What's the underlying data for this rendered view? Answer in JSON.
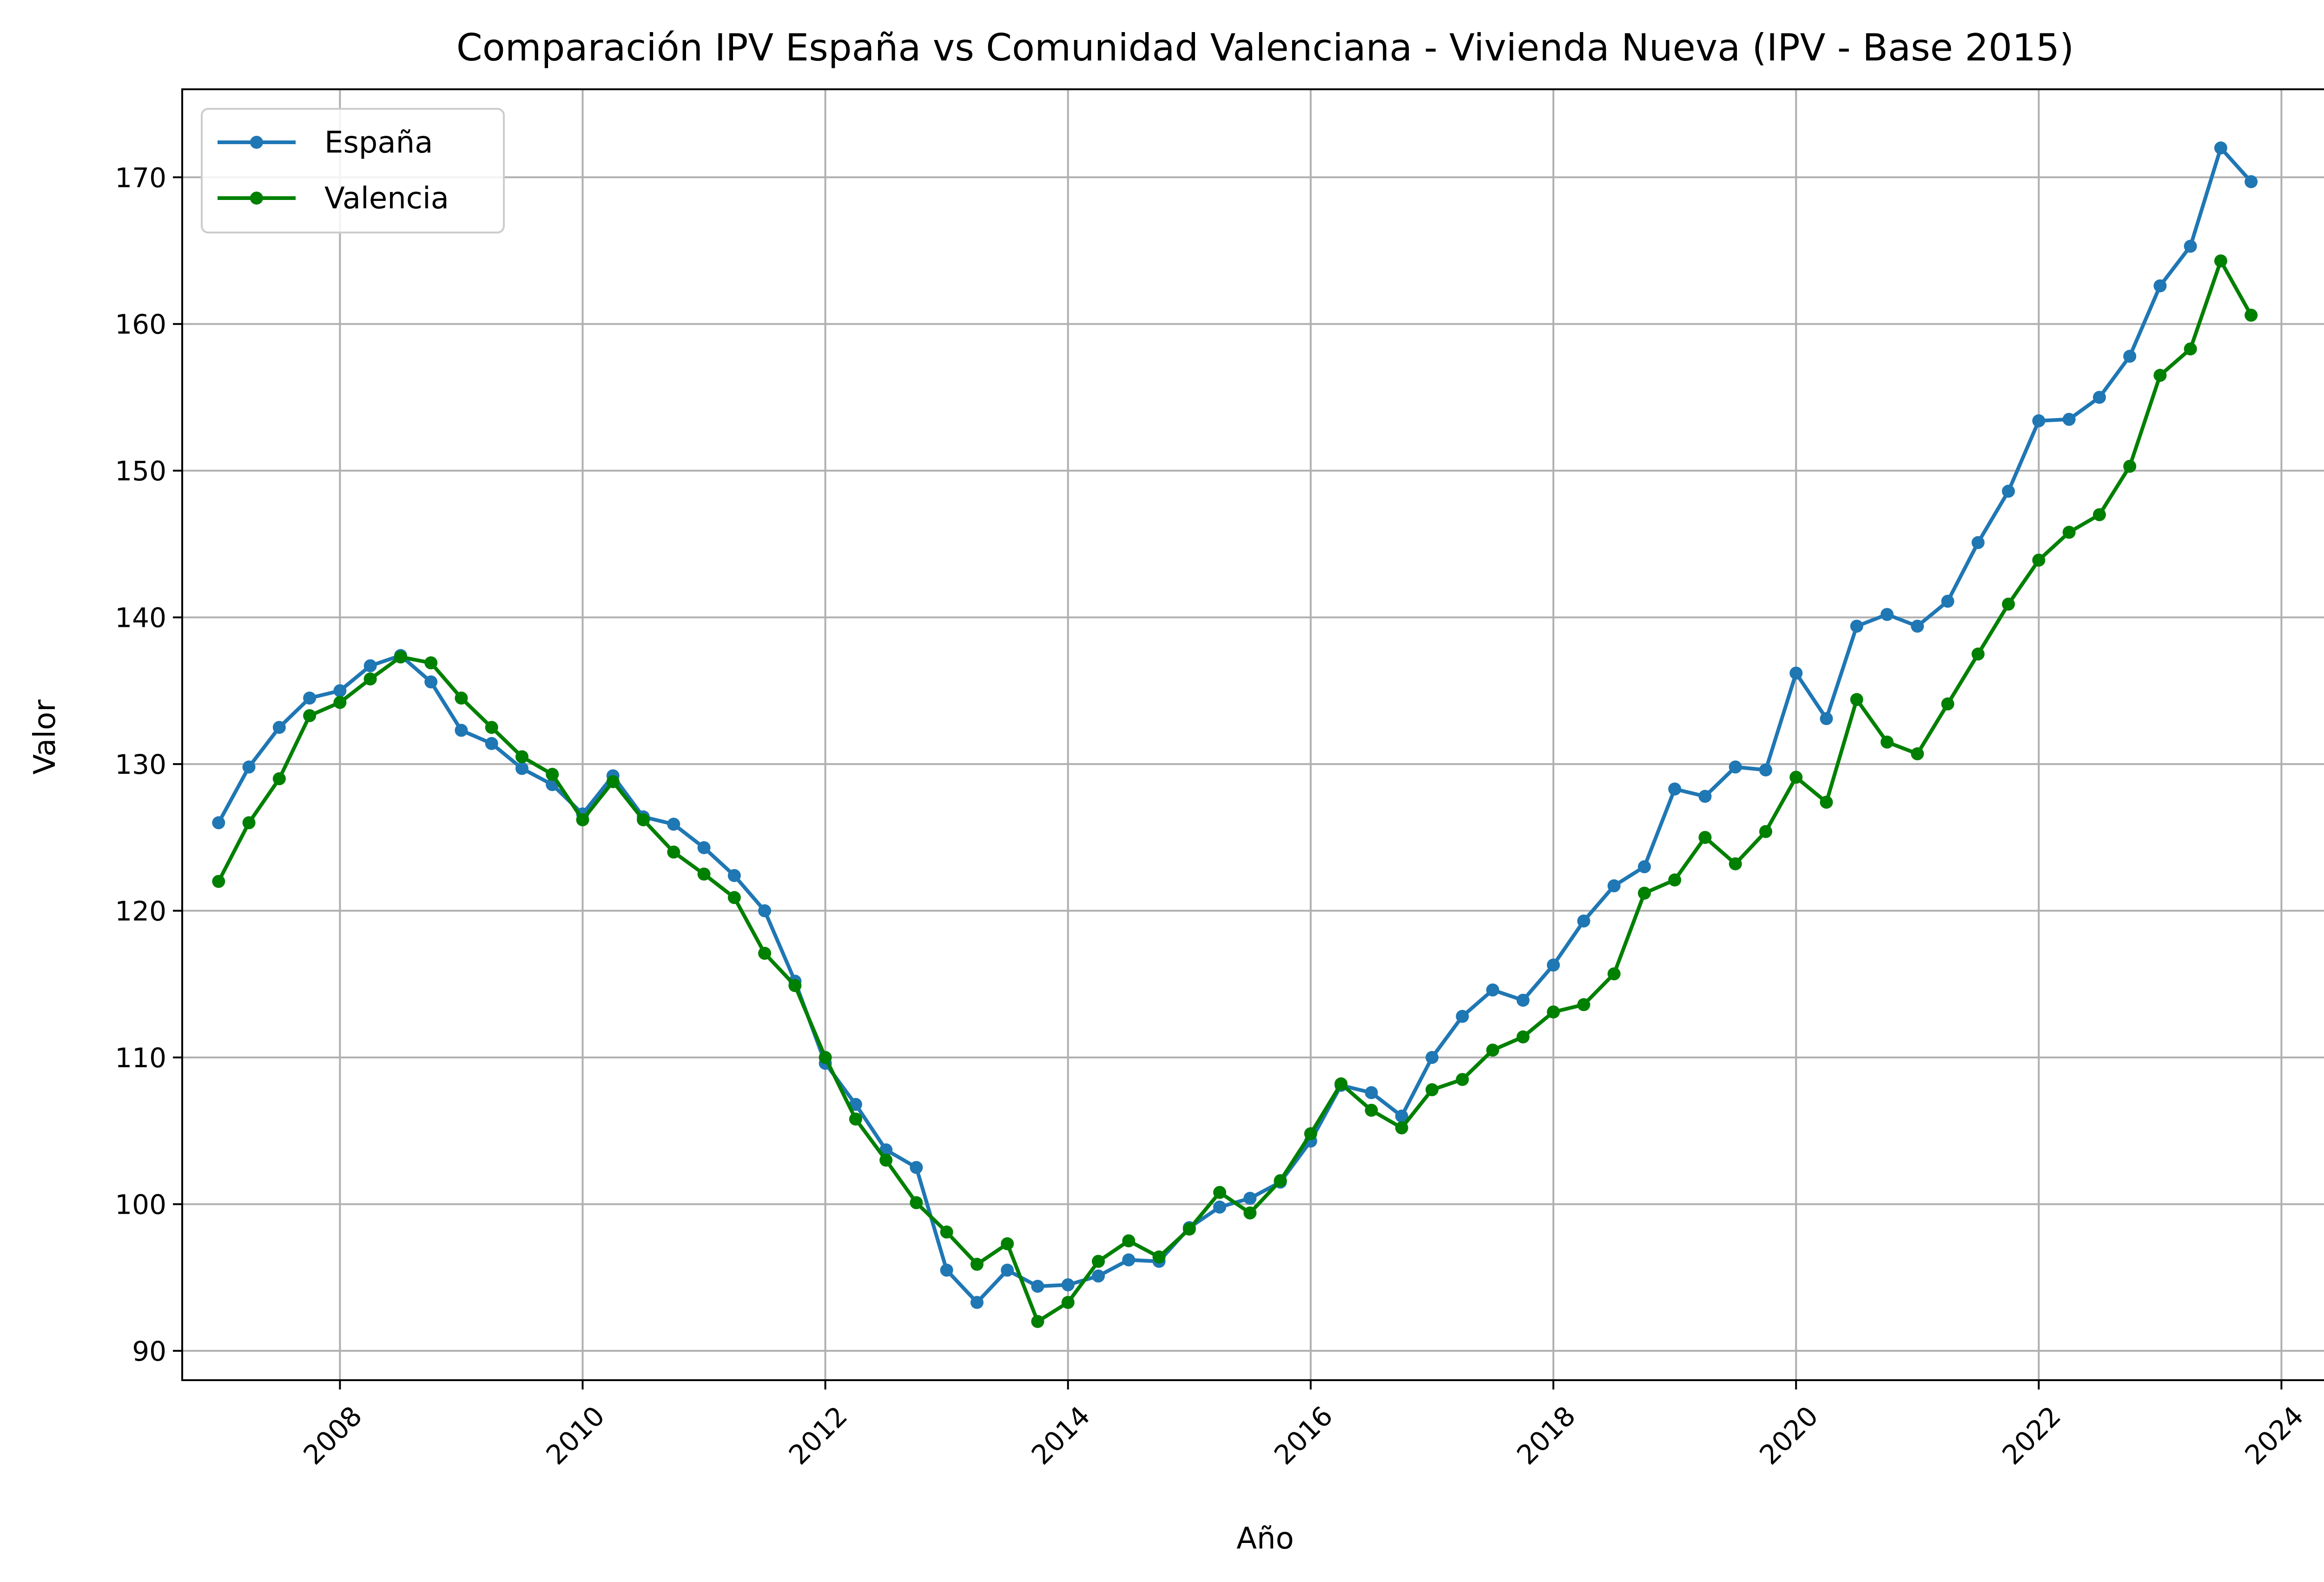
{
  "chart_data": {
    "type": "line",
    "title": "Comparación IPV España vs Comunidad Valenciana - Vivienda Nueva (IPV - Base 2015)",
    "xlabel": "Año",
    "ylabel": "Valor",
    "xlim": [
      2006.7,
      2024.55
    ],
    "ylim": [
      88,
      176
    ],
    "x_ticks": [
      "2008",
      "2010",
      "2012",
      "2014",
      "2016",
      "2018",
      "2020",
      "2022",
      "2024"
    ],
    "y_ticks": [
      "90",
      "100",
      "110",
      "120",
      "130",
      "140",
      "150",
      "160",
      "170"
    ],
    "grid": true,
    "legend_position": "top-left",
    "x": [
      2007.0,
      2007.25,
      2007.5,
      2007.75,
      2008.0,
      2008.25,
      2008.5,
      2008.75,
      2009.0,
      2009.25,
      2009.5,
      2009.75,
      2010.0,
      2010.25,
      2010.5,
      2010.75,
      2011.0,
      2011.25,
      2011.5,
      2011.75,
      2012.0,
      2012.25,
      2012.5,
      2012.75,
      2013.0,
      2013.25,
      2013.5,
      2013.75,
      2014.0,
      2014.25,
      2014.5,
      2014.75,
      2015.0,
      2015.25,
      2015.5,
      2015.75,
      2016.0,
      2016.25,
      2016.5,
      2016.75,
      2017.0,
      2017.25,
      2017.5,
      2017.75,
      2018.0,
      2018.25,
      2018.5,
      2018.75,
      2019.0,
      2019.25,
      2019.5,
      2019.75,
      2020.0,
      2020.25,
      2020.5,
      2020.75,
      2021.0,
      2021.25,
      2021.5,
      2021.75,
      2022.0,
      2022.25,
      2022.5,
      2022.75,
      2023.0,
      2023.25,
      2023.5,
      2023.75
    ],
    "series": [
      {
        "name": "España",
        "color": "#1f77b4",
        "values": [
          126.0,
          129.8,
          132.5,
          134.5,
          135.0,
          136.7,
          137.4,
          135.6,
          132.3,
          131.4,
          129.7,
          128.6,
          126.6,
          129.2,
          126.4,
          125.9,
          124.3,
          122.4,
          120.0,
          115.2,
          109.6,
          106.8,
          103.7,
          102.5,
          95.5,
          93.3,
          95.5,
          94.4,
          94.5,
          95.1,
          96.2,
          96.1,
          98.4,
          99.8,
          100.4,
          101.5,
          104.3,
          108.1,
          107.6,
          106.0,
          110.0,
          112.8,
          114.6,
          113.9,
          116.3,
          119.3,
          121.7,
          123.0,
          128.3,
          127.8,
          129.8,
          129.6,
          136.2,
          133.1,
          139.4,
          140.2,
          139.4,
          141.1,
          145.1,
          148.6,
          153.4,
          153.5,
          155.0,
          157.8,
          162.6,
          165.3,
          172.0,
          169.7
        ]
      },
      {
        "name": "Valencia",
        "color": "#008000",
        "values": [
          122.0,
          126.0,
          129.0,
          133.3,
          134.2,
          135.8,
          137.3,
          136.9,
          134.5,
          132.5,
          130.5,
          129.3,
          126.2,
          128.8,
          126.2,
          124.0,
          122.5,
          120.9,
          117.1,
          114.9,
          110.0,
          105.8,
          103.0,
          100.1,
          98.1,
          95.9,
          97.3,
          92.0,
          93.3,
          96.1,
          97.5,
          96.4,
          98.3,
          100.8,
          99.4,
          101.6,
          104.8,
          108.2,
          106.4,
          105.2,
          107.8,
          108.5,
          110.5,
          111.4,
          113.1,
          113.6,
          115.7,
          121.2,
          122.1,
          125.0,
          123.2,
          125.4,
          129.1,
          127.4,
          134.4,
          131.5,
          130.7,
          134.1,
          137.5,
          140.9,
          143.9,
          145.8,
          147.0,
          150.3,
          156.5,
          158.3,
          164.3,
          160.6
        ]
      }
    ]
  }
}
